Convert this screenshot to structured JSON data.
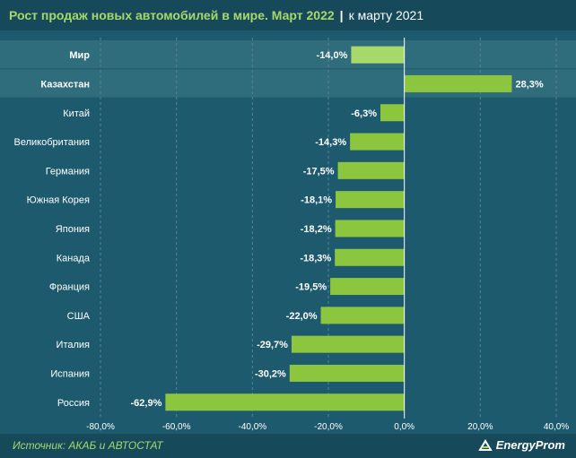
{
  "title": {
    "main": "Рост продаж новых автомобилей в мире. Март 2022",
    "separator": "|",
    "sub": "к марту 2021"
  },
  "source": "Источник: АКАБ и АВТОСТАТ",
  "logo": "EnergyProm",
  "colors": {
    "bar": "#8cc63f",
    "bar_world": "#a6d96a",
    "highlight_row": "#2f6d7c",
    "zero_line": "#ffffff"
  },
  "chart_data": {
    "type": "bar",
    "orientation": "horizontal",
    "categories": [
      "Мир",
      "Казахстан",
      "Китай",
      "Великобритания",
      "Германия",
      "Южная Корея",
      "Япония",
      "Канада",
      "Франция",
      "США",
      "Италия",
      "Испания",
      "Россия"
    ],
    "values": [
      -14.0,
      28.3,
      -6.3,
      -14.3,
      -17.5,
      -18.1,
      -18.2,
      -18.3,
      -19.5,
      -22.0,
      -29.7,
      -30.2,
      -62.9
    ],
    "value_labels": [
      "-14,0%",
      "28,3%",
      "-6,3%",
      "-14,3%",
      "-17,5%",
      "-18,1%",
      "-18,2%",
      "-18,3%",
      "-19,5%",
      "-22,0%",
      "-29,7%",
      "-30,2%",
      "-62,9%"
    ],
    "highlighted": [
      "Мир",
      "Казахстан"
    ],
    "xlim": [
      -80,
      40
    ],
    "xticks": [
      -80,
      -60,
      -40,
      -20,
      0,
      20,
      40
    ],
    "xtick_labels": [
      "-80,0%",
      "-60,0%",
      "-40,0%",
      "-20,0%",
      "0,0%",
      "20,0%",
      "40,0%"
    ],
    "grid": true
  }
}
